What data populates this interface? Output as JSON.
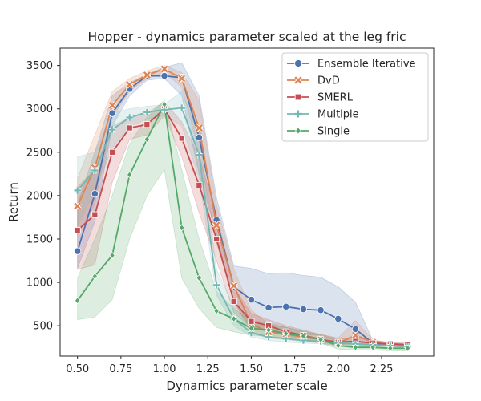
{
  "chart_data": {
    "type": "line",
    "title": "Hopper - dynamics parameter scaled at the leg fric",
    "xlabel": "Dynamics parameter scale",
    "ylabel": "Return",
    "xlim": [
      0.4,
      2.55
    ],
    "ylim": [
      150,
      3700
    ],
    "xticks": [
      0.5,
      0.75,
      1.0,
      1.25,
      1.5,
      1.75,
      2.0,
      2.25
    ],
    "xtick_labels": [
      "0.50",
      "0.75",
      "1.00",
      "1.25",
      "1.50",
      "1.75",
      "2.00",
      "2.25"
    ],
    "yticks": [
      500,
      1000,
      1500,
      2000,
      2500,
      3000,
      3500
    ],
    "ytick_labels": [
      "500",
      "1000",
      "1500",
      "2000",
      "2500",
      "3000",
      "3500"
    ],
    "grid": false,
    "legend_position": "top-right",
    "series": [
      {
        "name": "Ensemble Iterative",
        "color": "#4c72b0",
        "marker": "circle",
        "x": [
          0.5,
          0.6,
          0.7,
          0.8,
          0.9,
          1.0,
          1.1,
          1.2,
          1.3,
          1.4,
          1.5,
          1.6,
          1.7,
          1.8,
          1.9,
          2.0,
          2.1,
          2.2,
          2.3,
          2.4
        ],
        "y": [
          1360,
          2020,
          2950,
          3230,
          3380,
          3380,
          3360,
          2670,
          1720,
          950,
          800,
          710,
          720,
          690,
          680,
          580,
          460,
          300,
          280,
          270
        ],
        "upper": [
          1900,
          2500,
          3150,
          3300,
          3400,
          3480,
          3530,
          3150,
          1980,
          1190,
          1160,
          1100,
          1110,
          1080,
          1060,
          950,
          770,
          330,
          300,
          290
        ],
        "lower": [
          1160,
          1700,
          2800,
          3150,
          3330,
          3350,
          3150,
          2250,
          1550,
          760,
          470,
          430,
          420,
          400,
          390,
          330,
          290,
          270,
          260,
          250
        ]
      },
      {
        "name": "DvD",
        "color": "#dd8452",
        "marker": "x",
        "x": [
          0.5,
          0.6,
          0.7,
          0.8,
          0.9,
          1.0,
          1.1,
          1.2,
          1.3,
          1.4,
          1.5,
          1.6,
          1.7,
          1.8,
          1.9,
          2.0,
          2.1,
          2.2,
          2.3,
          2.4
        ],
        "y": [
          1880,
          2320,
          3040,
          3280,
          3390,
          3460,
          3350,
          2780,
          1660,
          960,
          520,
          430,
          400,
          370,
          340,
          300,
          390,
          310,
          280,
          270
        ],
        "upper": [
          2200,
          2700,
          3200,
          3350,
          3440,
          3500,
          3420,
          3100,
          1900,
          1150,
          680,
          520,
          480,
          430,
          400,
          360,
          560,
          340,
          300,
          290
        ],
        "lower": [
          1550,
          1900,
          2900,
          3200,
          3350,
          3420,
          3250,
          2500,
          1450,
          800,
          410,
          360,
          340,
          320,
          300,
          270,
          270,
          280,
          260,
          250
        ]
      },
      {
        "name": "SMERL",
        "color": "#c44e52",
        "marker": "square",
        "x": [
          0.5,
          0.6,
          0.7,
          0.8,
          0.9,
          1.0,
          1.1,
          1.2,
          1.3,
          1.4,
          1.5,
          1.6,
          1.7,
          1.8,
          1.9,
          2.0,
          2.1,
          2.2,
          2.3,
          2.4
        ],
        "y": [
          1600,
          1780,
          2500,
          2780,
          2820,
          3000,
          2660,
          2120,
          1500,
          780,
          550,
          500,
          430,
          390,
          340,
          310,
          320,
          300,
          290,
          280
        ],
        "upper": [
          2100,
          2300,
          2800,
          2900,
          2950,
          3080,
          2850,
          2450,
          1780,
          950,
          640,
          570,
          500,
          450,
          400,
          350,
          360,
          330,
          310,
          300
        ],
        "lower": [
          1150,
          1200,
          2150,
          2650,
          2700,
          2920,
          2450,
          1800,
          1250,
          650,
          480,
          440,
          380,
          350,
          310,
          280,
          290,
          280,
          270,
          260
        ]
      },
      {
        "name": "Multiple",
        "color": "#76b7b2",
        "marker": "plus",
        "x": [
          0.5,
          0.6,
          0.7,
          0.8,
          0.9,
          1.0,
          1.1,
          1.2,
          1.3,
          1.4,
          1.5,
          1.6,
          1.7,
          1.8,
          1.9,
          2.0,
          2.1,
          2.2,
          2.3,
          2.4
        ],
        "y": [
          2060,
          2290,
          2760,
          2900,
          2960,
          2990,
          3010,
          2470,
          970,
          580,
          420,
          370,
          350,
          330,
          320,
          300,
          290,
          280,
          270,
          260
        ],
        "upper": [
          2450,
          2500,
          2950,
          3000,
          3030,
          3050,
          3200,
          2700,
          1150,
          720,
          500,
          430,
          400,
          380,
          360,
          340,
          320,
          310,
          290,
          280
        ],
        "lower": [
          1650,
          2050,
          2550,
          2800,
          2880,
          2930,
          2800,
          2200,
          850,
          500,
          370,
          330,
          310,
          300,
          290,
          270,
          260,
          250,
          250,
          240
        ]
      },
      {
        "name": "Single",
        "color": "#55a868",
        "marker": "diamond",
        "x": [
          0.5,
          0.6,
          0.7,
          0.8,
          0.9,
          1.0,
          1.1,
          1.2,
          1.3,
          1.4,
          1.5,
          1.6,
          1.7,
          1.8,
          1.9,
          2.0,
          2.1,
          2.2,
          2.3,
          2.4
        ],
        "y": [
          790,
          1070,
          1310,
          2240,
          2650,
          3050,
          1630,
          1050,
          670,
          580,
          470,
          450,
          410,
          380,
          340,
          270,
          250,
          250,
          240,
          240
        ],
        "upper": [
          1050,
          1500,
          2000,
          2600,
          2900,
          3100,
          2300,
          1500,
          900,
          700,
          560,
          530,
          480,
          440,
          390,
          320,
          290,
          280,
          270,
          270
        ],
        "lower": [
          570,
          600,
          800,
          1500,
          2000,
          2300,
          1050,
          700,
          480,
          430,
          390,
          380,
          350,
          330,
          300,
          230,
          220,
          220,
          210,
          210
        ]
      }
    ]
  }
}
